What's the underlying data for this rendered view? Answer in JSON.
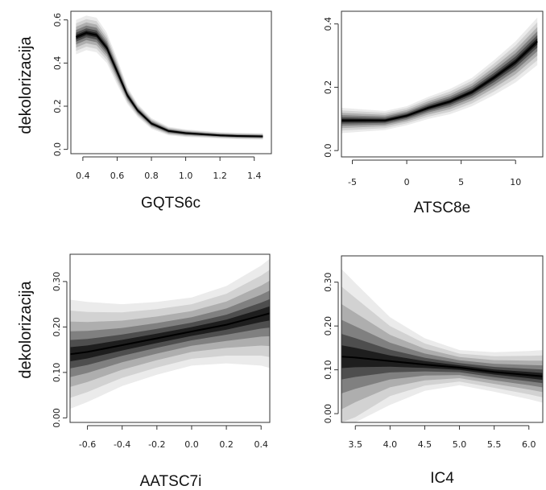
{
  "figure": {
    "ylabel": "dekolorizacija"
  },
  "chart_data": [
    {
      "type": "area",
      "title": "",
      "xlabel": "GQTS6c",
      "ylabel": "dekolorizacija",
      "xlim": [
        0.33,
        1.5
      ],
      "ylim": [
        -0.02,
        0.64
      ],
      "xticks": [
        0.4,
        0.6,
        0.8,
        1.0,
        1.2,
        1.4
      ],
      "xtick_labels": [
        "0.4",
        "0.6",
        "0.8",
        "1.0",
        "1.2",
        "1.4"
      ],
      "yticks": [
        0.0,
        0.2,
        0.4,
        0.6
      ],
      "ytick_labels": [
        "0.0",
        "0.2",
        "0.4",
        "0.6"
      ],
      "grid": false,
      "x": [
        0.36,
        0.42,
        0.48,
        0.54,
        0.6,
        0.66,
        0.72,
        0.8,
        0.9,
        1.0,
        1.1,
        1.2,
        1.3,
        1.45
      ],
      "series": [
        {
          "values": [
            0.52,
            0.54,
            0.53,
            0.47,
            0.36,
            0.25,
            0.18,
            0.12,
            0.085,
            0.075,
            0.07,
            0.065,
            0.062,
            0.06
          ]
        }
      ],
      "band_halfwidth": [
        0.08,
        0.08,
        0.08,
        0.07,
        0.06,
        0.04,
        0.03,
        0.025,
        0.02,
        0.018,
        0.016,
        0.015,
        0.015,
        0.015
      ]
    },
    {
      "type": "area",
      "title": "",
      "xlabel": "ATSC8e",
      "ylabel": "",
      "xlim": [
        -6,
        12.5
      ],
      "ylim": [
        -0.02,
        0.44
      ],
      "xticks": [
        -5,
        0,
        5,
        10
      ],
      "xtick_labels": [
        "-5",
        "0",
        "5",
        "10"
      ],
      "yticks": [
        0.0,
        0.2,
        0.4
      ],
      "ytick_labels": [
        "0.0",
        "0.2",
        "0.4"
      ],
      "grid": false,
      "x": [
        -6,
        -4,
        -2,
        0,
        2,
        4,
        6,
        8,
        10,
        12
      ],
      "series": [
        {
          "values": [
            0.095,
            0.095,
            0.095,
            0.11,
            0.135,
            0.155,
            0.185,
            0.23,
            0.28,
            0.345
          ]
        }
      ],
      "band_halfwidth": [
        0.04,
        0.035,
        0.03,
        0.03,
        0.035,
        0.04,
        0.045,
        0.055,
        0.065,
        0.075
      ]
    },
    {
      "type": "area",
      "title": "",
      "xlabel": "AATSC7i",
      "ylabel": "dekolorizacija",
      "xlim": [
        -0.7,
        0.45
      ],
      "ylim": [
        -0.01,
        0.36
      ],
      "xticks": [
        -0.6,
        -0.4,
        -0.2,
        0.0,
        0.2,
        0.4
      ],
      "xtick_labels": [
        "-0.6",
        "-0.4",
        "-0.2",
        "0.0",
        "0.2",
        "0.4"
      ],
      "yticks": [
        0.0,
        0.1,
        0.2,
        0.3
      ],
      "ytick_labels": [
        "0.00",
        "0.10",
        "0.20",
        "0.30"
      ],
      "grid": false,
      "x": [
        -0.7,
        -0.6,
        -0.4,
        -0.2,
        0.0,
        0.2,
        0.4,
        0.45
      ],
      "series": [
        {
          "values": [
            0.14,
            0.145,
            0.16,
            0.175,
            0.19,
            0.205,
            0.225,
            0.23
          ]
        }
      ],
      "band_halfwidth": [
        0.12,
        0.11,
        0.09,
        0.08,
        0.075,
        0.085,
        0.11,
        0.12
      ]
    },
    {
      "type": "area",
      "title": "",
      "xlabel": "IC4",
      "ylabel": "",
      "xlim": [
        3.3,
        6.2
      ],
      "ylim": [
        -0.02,
        0.36
      ],
      "xticks": [
        3.5,
        4.0,
        4.5,
        5.0,
        5.5,
        6.0
      ],
      "xtick_labels": [
        "3.5",
        "4.0",
        "4.5",
        "5.0",
        "5.5",
        "6.0"
      ],
      "yticks": [
        0.0,
        0.1,
        0.2,
        0.3
      ],
      "ytick_labels": [
        "0.00",
        "0.10",
        "0.20",
        "0.30"
      ],
      "grid": false,
      "x": [
        3.3,
        3.5,
        4.0,
        4.5,
        5.0,
        5.5,
        6.0,
        6.2
      ],
      "series": [
        {
          "values": [
            0.13,
            0.128,
            0.12,
            0.112,
            0.105,
            0.095,
            0.088,
            0.085
          ]
        }
      ],
      "band_halfwidth": [
        0.2,
        0.17,
        0.1,
        0.06,
        0.04,
        0.045,
        0.055,
        0.06
      ]
    }
  ]
}
